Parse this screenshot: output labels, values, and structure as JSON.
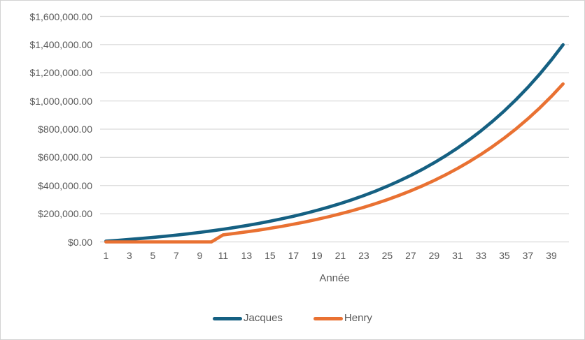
{
  "styles": {
    "text_color": "#595959",
    "gridline_color": "#d9d9d9",
    "frame_border_color": "#d2d2d2",
    "background": "#ffffff"
  },
  "chart_data": {
    "type": "line",
    "title": "",
    "xlabel": "Année",
    "ylabel": "",
    "grid": "horizontal",
    "legend_position": "bottom",
    "x": [
      1,
      2,
      3,
      4,
      5,
      6,
      7,
      8,
      9,
      10,
      11,
      12,
      13,
      14,
      15,
      16,
      17,
      18,
      19,
      20,
      21,
      22,
      23,
      24,
      25,
      26,
      27,
      28,
      29,
      30,
      31,
      32,
      33,
      34,
      35,
      36,
      37,
      38,
      39,
      40
    ],
    "x_tick_labels": [
      "1",
      "3",
      "5",
      "7",
      "9",
      "11",
      "13",
      "15",
      "17",
      "19",
      "21",
      "23",
      "25",
      "27",
      "29",
      "31",
      "33",
      "35",
      "37",
      "39"
    ],
    "ylim": [
      0,
      1600000
    ],
    "y_ticks": [
      0,
      200000,
      400000,
      600000,
      800000,
      1000000,
      1200000,
      1400000,
      1600000
    ],
    "y_tick_labels": [
      "$0.00",
      "$200,000.00",
      "$400,000.00",
      "$600,000.00",
      "$800,000.00",
      "$1,000,000.00",
      "$1,200,000.00",
      "$1,400,000.00",
      "$1,600,000.00"
    ],
    "series": [
      {
        "name": "Jacques",
        "color": "#156082",
        "values": [
          5400,
          11200,
          17500,
          24300,
          31700,
          39600,
          48200,
          57400,
          67400,
          78200,
          89900,
          102500,
          116100,
          130800,
          146600,
          163800,
          182300,
          202200,
          223800,
          247100,
          272300,
          299500,
          328800,
          360500,
          394800,
          431800,
          471700,
          514800,
          561400,
          611700,
          666100,
          724800,
          788100,
          856600,
          930500,
          1010400,
          1096600,
          1189700,
          1290300,
          1398900
        ]
      },
      {
        "name": "Henry",
        "color": "#E97132",
        "values": [
          0,
          0,
          0,
          0,
          0,
          0,
          0,
          0,
          0,
          0,
          50000,
          60300,
          71400,
          83400,
          96400,
          110400,
          125600,
          141900,
          159600,
          178600,
          199200,
          221400,
          245500,
          271400,
          299400,
          329700,
          362300,
          397600,
          435700,
          476900,
          521300,
          569400,
          621200,
          677200,
          737700,
          803000,
          873500,
          949700,
          1032000,
          1120800
        ]
      }
    ]
  }
}
